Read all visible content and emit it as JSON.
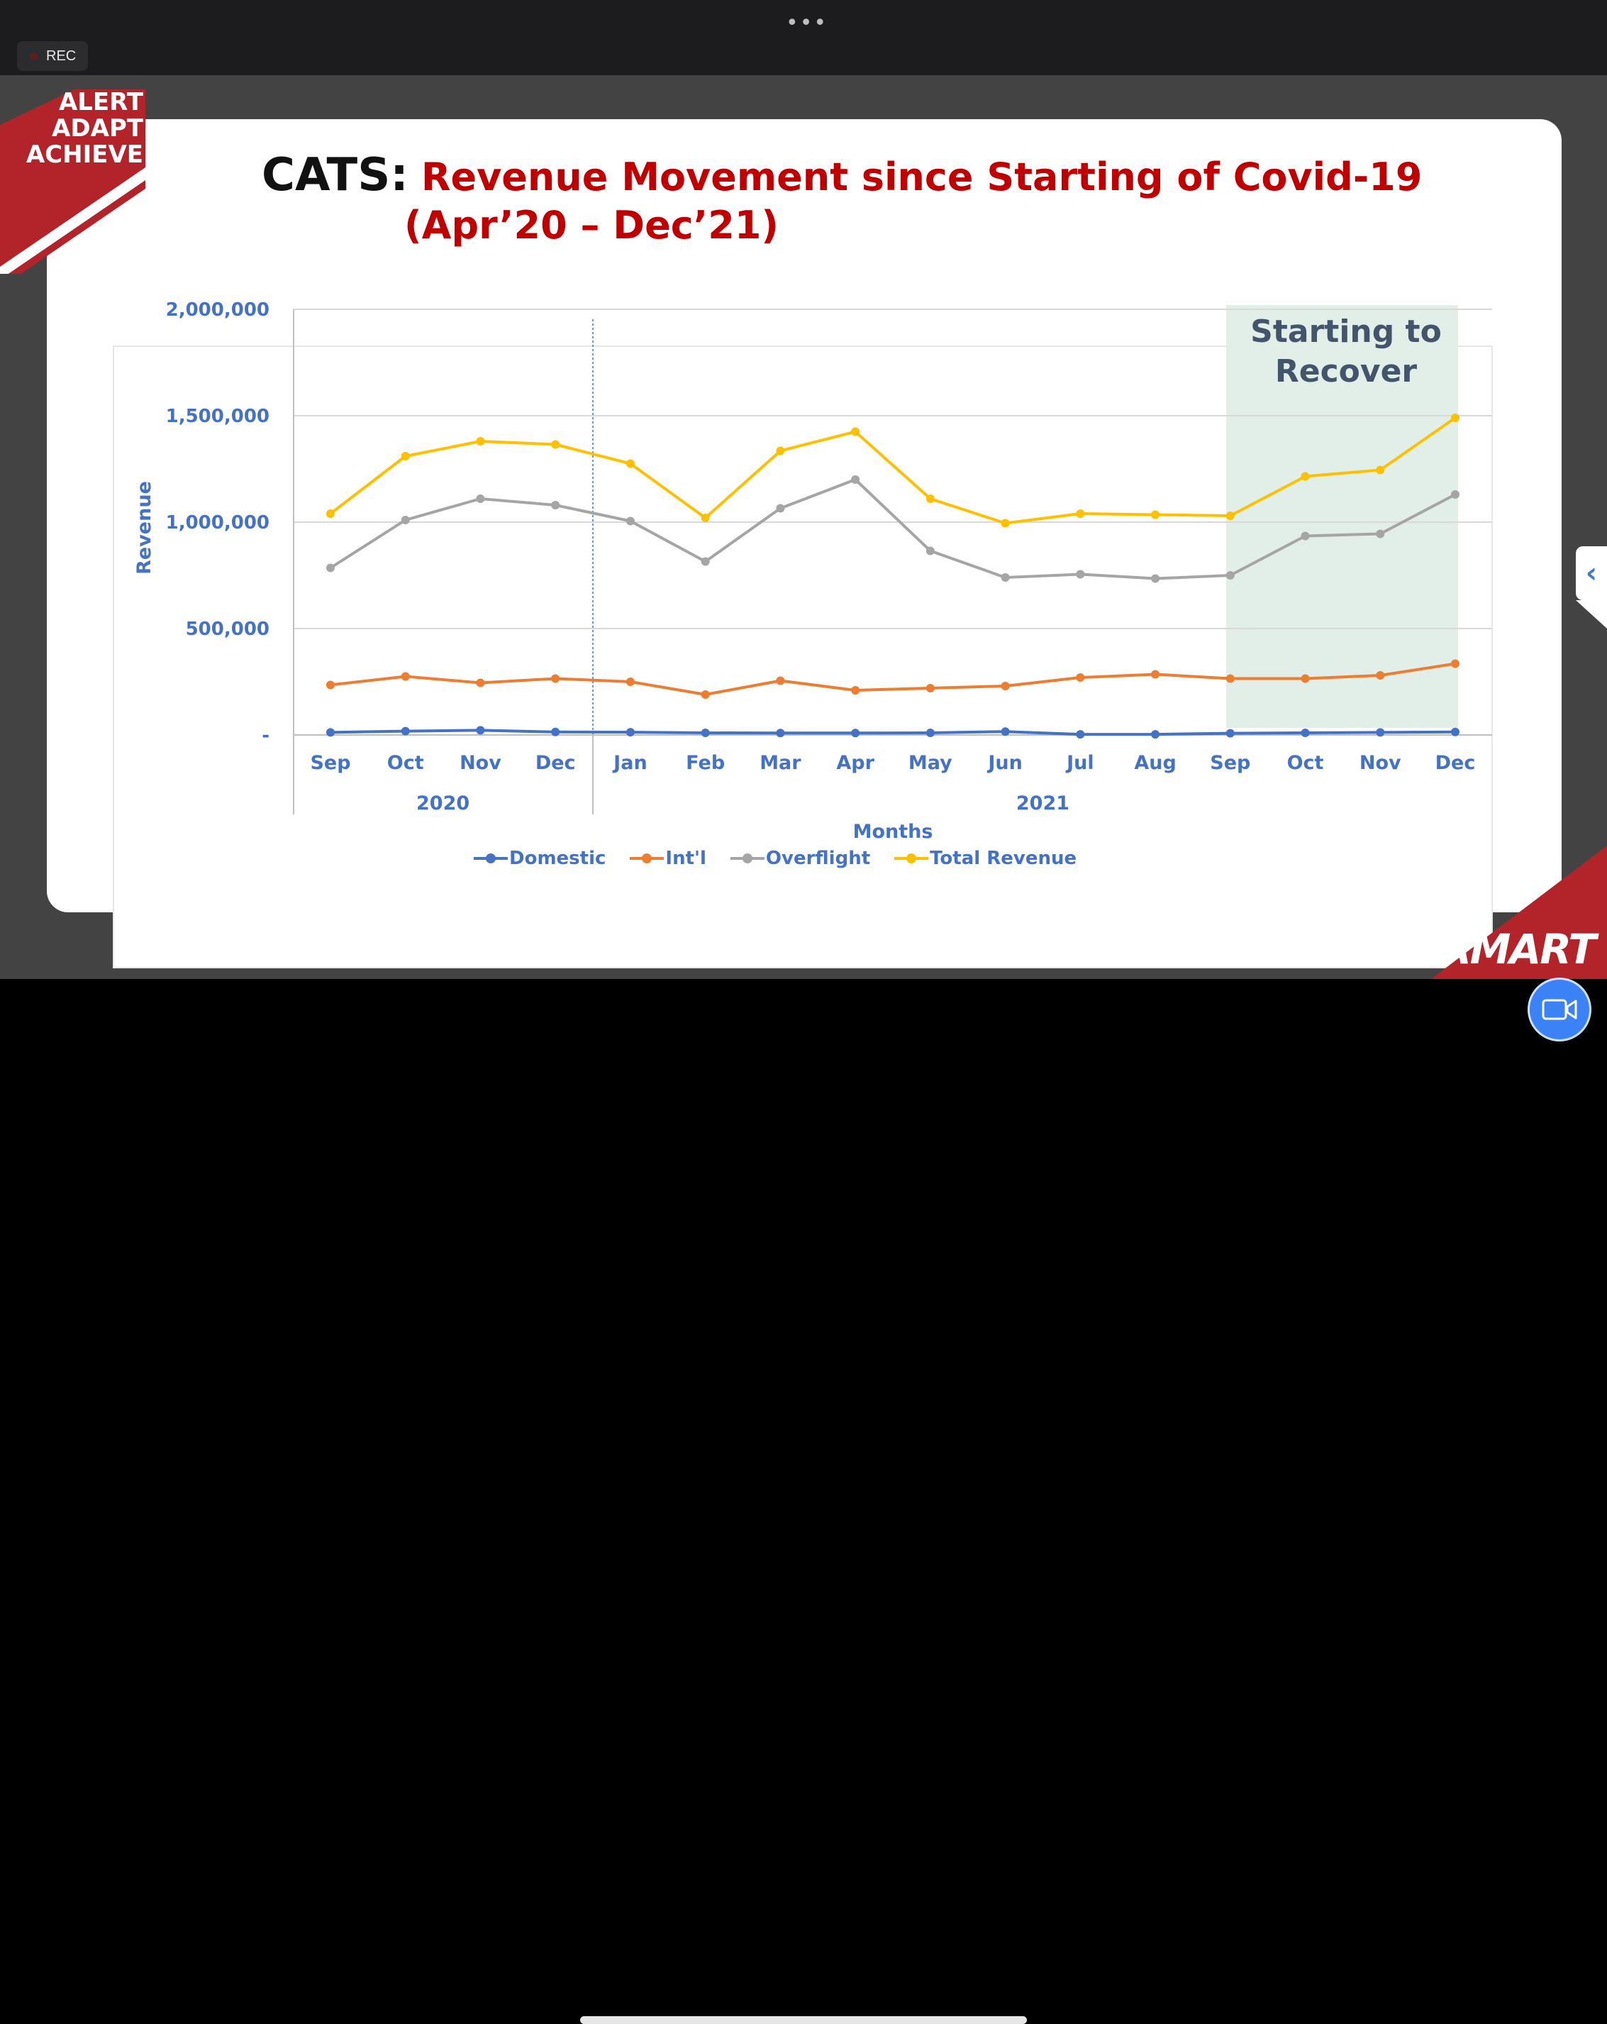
{
  "recording": {
    "label": "REC"
  },
  "banner": {
    "lines": [
      "ALERT",
      "ADAPT",
      "ACHIEVE"
    ]
  },
  "slide": {
    "title_prefix": "CATS:",
    "title_main": "Revenue Movement since Starting of Covid-19",
    "title_sub": "(Apr’20 – Dec’21)",
    "brand": "SAMART"
  },
  "colors": {
    "domestic": "#4472c4",
    "intl": "#ed7d31",
    "overflight": "#a5a5a5",
    "total": "#ffc000",
    "highlight": "#e2efe9",
    "axis_text": "#4472c4",
    "banner_red": "#b2242a"
  },
  "icons": {
    "side_tab": "chevron-left-icon",
    "camera": "video-camera-icon"
  },
  "chart_data": {
    "type": "line",
    "xlabel": "Months",
    "ylabel": "Revenue",
    "ylim": [
      0,
      2000000
    ],
    "yticks": [
      {
        "value": 0,
        "label": "-"
      },
      {
        "value": 500000,
        "label": "500,000"
      },
      {
        "value": 1000000,
        "label": "1,000,000"
      },
      {
        "value": 1500000,
        "label": "1,500,000"
      },
      {
        "value": 2000000,
        "label": "2,000,000"
      }
    ],
    "categories": [
      "Sep",
      "Oct",
      "Nov",
      "Dec",
      "Jan",
      "Feb",
      "Mar",
      "Apr",
      "May",
      "Jun",
      "Jul",
      "Aug",
      "Sep",
      "Oct",
      "Nov",
      "Dec"
    ],
    "year_groups": [
      {
        "label": "2020",
        "start": 0,
        "end": 3
      },
      {
        "label": "2021",
        "start": 4,
        "end": 15
      }
    ],
    "grid": true,
    "legend_position": "bottom",
    "annotation": {
      "text_lines": [
        "Starting to",
        "Recover"
      ],
      "start_index": 12,
      "end_index": 15
    },
    "series": [
      {
        "name": "Domestic",
        "color_key": "domestic",
        "values": [
          12000,
          18000,
          22000,
          14000,
          13000,
          10000,
          9000,
          9000,
          10000,
          16000,
          3000,
          3000,
          8000,
          10000,
          12000,
          14000
        ]
      },
      {
        "name": "Int'l",
        "color_key": "intl",
        "values": [
          235000,
          275000,
          245000,
          265000,
          250000,
          190000,
          255000,
          210000,
          220000,
          230000,
          270000,
          285000,
          265000,
          265000,
          280000,
          335000
        ]
      },
      {
        "name": "Overflight",
        "color_key": "overflight",
        "values": [
          785000,
          1010000,
          1110000,
          1080000,
          1005000,
          815000,
          1065000,
          1200000,
          865000,
          740000,
          755000,
          735000,
          750000,
          935000,
          945000,
          1130000
        ]
      },
      {
        "name": "Total Revenue",
        "color_key": "total",
        "values": [
          1040000,
          1310000,
          1380000,
          1365000,
          1275000,
          1020000,
          1335000,
          1425000,
          1110000,
          995000,
          1040000,
          1035000,
          1030000,
          1215000,
          1245000,
          1490000
        ]
      }
    ]
  }
}
